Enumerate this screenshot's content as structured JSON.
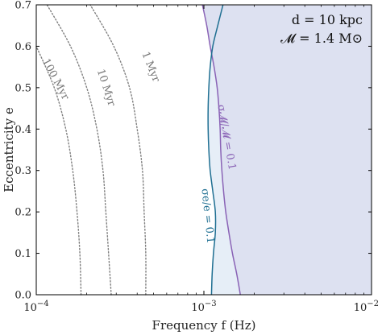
{
  "chart_data": {
    "type": "line",
    "xlabel": "Frequency f (Hz)",
    "ylabel": "Eccentricity e",
    "xscale": "log",
    "xlim": [
      0.0001,
      0.01
    ],
    "ylim": [
      0.0,
      0.7
    ],
    "x_ticks": [
      {
        "value": 0.0001,
        "base": "10",
        "exp": "−4"
      },
      {
        "value": 0.001,
        "base": "10",
        "exp": "−3"
      },
      {
        "value": 0.01,
        "base": "10",
        "exp": "−2"
      }
    ],
    "y_ticks": [
      {
        "value": 0.0,
        "label": "0.0"
      },
      {
        "value": 0.1,
        "label": "0.1"
      },
      {
        "value": 0.2,
        "label": "0.2"
      },
      {
        "value": 0.3,
        "label": "0.3"
      },
      {
        "value": 0.4,
        "label": "0.4"
      },
      {
        "value": 0.5,
        "label": "0.5"
      },
      {
        "value": 0.6,
        "label": "0.6"
      },
      {
        "value": 0.7,
        "label": "0.7"
      }
    ],
    "annotations": [
      "d = 10 kpc",
      "𝓜 = 1.4 M⊙"
    ],
    "colors": {
      "chirp_region": "#dde1f1",
      "ecc_region": "#e6eef7",
      "chirp_curve": "#8a63b6",
      "ecc_curve": "#1f6f92",
      "time_curves": "#808080",
      "axes": "#000000"
    },
    "series": [
      {
        "name": "σ𝓜/𝓜 = 0.1",
        "style": "solid",
        "color": "#8a63b6",
        "points": [
          [
            0.00165,
            0.0
          ],
          [
            0.00157,
            0.05
          ],
          [
            0.00148,
            0.1
          ],
          [
            0.00141,
            0.15
          ],
          [
            0.00135,
            0.2
          ],
          [
            0.00131,
            0.25
          ],
          [
            0.00128,
            0.3
          ],
          [
            0.00126,
            0.35
          ],
          [
            0.00125,
            0.4
          ],
          [
            0.00123,
            0.45
          ],
          [
            0.0012,
            0.5
          ],
          [
            0.00115,
            0.55
          ],
          [
            0.00109,
            0.6
          ],
          [
            0.00104,
            0.65
          ],
          [
            0.00098,
            0.7
          ]
        ]
      },
      {
        "name": "σe/e = 0.1",
        "style": "solid",
        "color": "#1f6f92",
        "points": [
          [
            0.00111,
            0.0
          ],
          [
            0.00112,
            0.05
          ],
          [
            0.00114,
            0.1
          ],
          [
            0.00117,
            0.15
          ],
          [
            0.00117,
            0.2
          ],
          [
            0.00113,
            0.25
          ],
          [
            0.00109,
            0.3
          ],
          [
            0.00107,
            0.35
          ],
          [
            0.00106,
            0.4
          ],
          [
            0.00106,
            0.45
          ],
          [
            0.00107,
            0.5
          ],
          [
            0.00109,
            0.55
          ],
          [
            0.00113,
            0.6
          ],
          [
            0.00121,
            0.65
          ],
          [
            0.0013,
            0.7
          ]
        ]
      },
      {
        "name": "1 Myr",
        "style": "dotted",
        "color": "#808080",
        "points": [
          [
            0.00045,
            0.0
          ],
          [
            0.00045,
            0.1
          ],
          [
            0.00044,
            0.2
          ],
          [
            0.00043,
            0.3
          ],
          [
            0.0004,
            0.4
          ],
          [
            0.00036,
            0.5
          ],
          [
            0.00029,
            0.6
          ],
          [
            0.00021,
            0.7
          ]
        ]
      },
      {
        "name": "10 Myr",
        "style": "dotted",
        "color": "#808080",
        "points": [
          [
            0.00028,
            0.0
          ],
          [
            0.00027,
            0.1
          ],
          [
            0.00026,
            0.2
          ],
          [
            0.00025,
            0.3
          ],
          [
            0.00023,
            0.4
          ],
          [
            0.0002,
            0.5
          ],
          [
            0.00016,
            0.6
          ],
          [
            0.000116,
            0.7
          ]
        ]
      },
      {
        "name": "100 Myr",
        "style": "dotted",
        "color": "#808080",
        "points": [
          [
            0.000185,
            0.0
          ],
          [
            0.000182,
            0.1
          ],
          [
            0.000175,
            0.2
          ],
          [
            0.000165,
            0.3
          ],
          [
            0.00015,
            0.4
          ],
          [
            0.000128,
            0.5
          ],
          [
            0.0001,
            0.6
          ]
        ]
      }
    ],
    "contour_labels": [
      {
        "text": "100 Myr",
        "x": 0.00013,
        "y": 0.52,
        "angle": 62
      },
      {
        "text": "10 Myr",
        "x": 0.00026,
        "y": 0.5,
        "angle": 72
      },
      {
        "text": "1 Myr",
        "x": 0.00048,
        "y": 0.55,
        "angle": 68
      },
      {
        "text": "σ𝓜/𝓜 = 0.1",
        "x": 0.00136,
        "y": 0.38,
        "angle": 80
      },
      {
        "text": "σe/e = 0.1",
        "x": 0.00105,
        "y": 0.19,
        "angle": 84
      }
    ]
  }
}
